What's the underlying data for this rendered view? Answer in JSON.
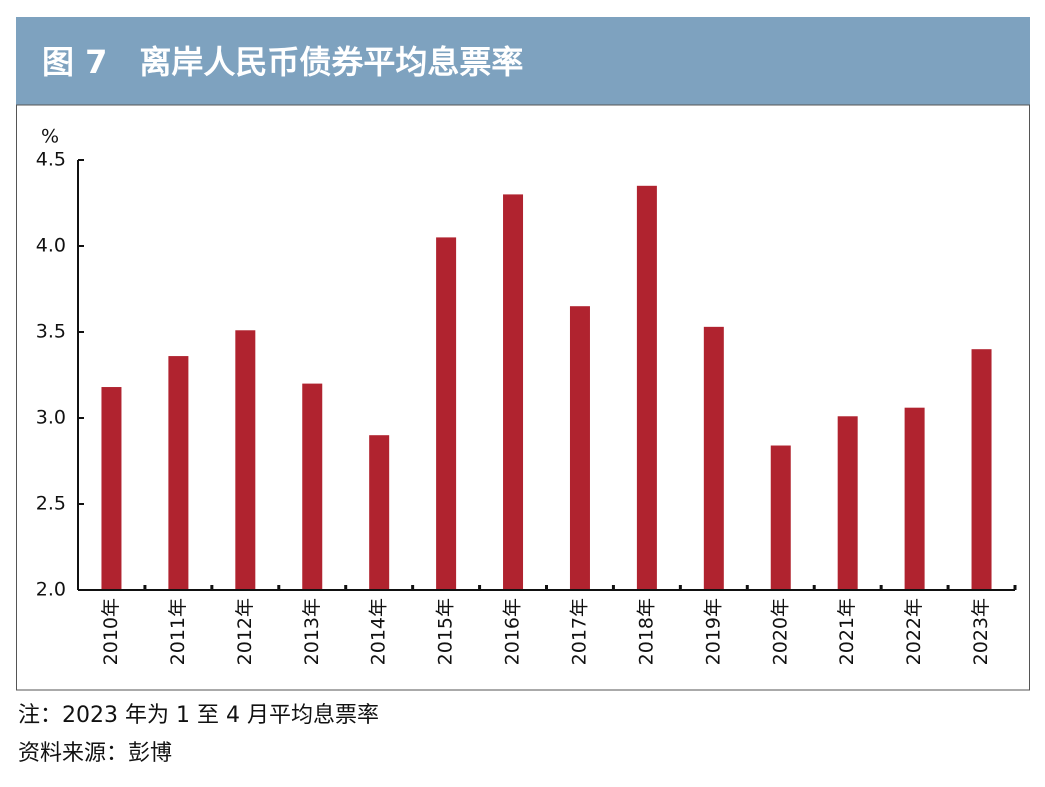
{
  "chart_data": {
    "type": "bar",
    "title": "图 7　离岸人民币债券平均息票率",
    "y_unit": "%",
    "categories": [
      "2010年",
      "2011年",
      "2012年",
      "2013年",
      "2014年",
      "2015年",
      "2016年",
      "2017年",
      "2018年",
      "2019年",
      "2020年",
      "2021年",
      "2022年",
      "2023年"
    ],
    "values": [
      3.18,
      3.36,
      3.51,
      3.2,
      2.9,
      4.05,
      4.3,
      3.65,
      4.35,
      3.53,
      2.84,
      3.01,
      3.06,
      3.4
    ],
    "color": "#b0232f",
    "ylim": [
      2.0,
      4.5
    ],
    "yticks": [
      {
        "value": 2.0,
        "label": "2.0"
      },
      2.5,
      {
        "value": 3.0,
        "label": "3.0"
      },
      3.5,
      {
        "value": 4.0,
        "label": "4.0"
      },
      4.5
    ],
    "grid": false,
    "note": "注：2023 年为 1 至 4 月平均息票率",
    "source": "资料来源：彭博"
  }
}
